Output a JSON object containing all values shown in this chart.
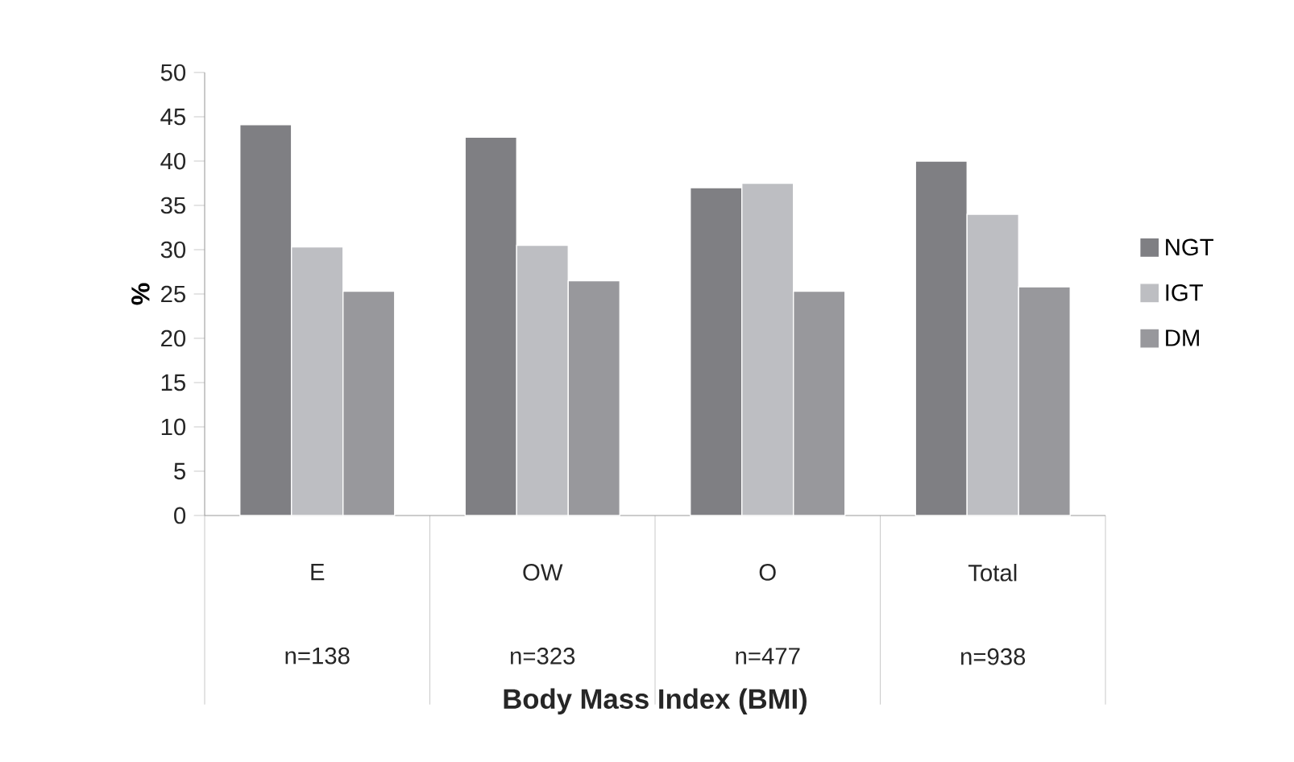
{
  "chart_data": {
    "type": "bar",
    "xlabel": "Body Mass Index (BMI)",
    "ylabel": "%",
    "categories": [
      "E",
      "OW",
      "O",
      "Total"
    ],
    "series": [
      {
        "name": "NGT",
        "color": "#7f7f83",
        "values": [
          44.1,
          42.7,
          37.0,
          40.0
        ]
      },
      {
        "name": "IGT",
        "color": "#bdbec2",
        "values": [
          30.3,
          30.5,
          37.5,
          34.0
        ]
      },
      {
        "name": "DM",
        "color": "#98989c",
        "values": [
          25.3,
          26.5,
          25.3,
          25.8
        ]
      }
    ],
    "ylim": [
      0,
      50
    ],
    "yticks": [
      0,
      5,
      10,
      15,
      20,
      25,
      30,
      35,
      40,
      45,
      50
    ],
    "legend": "right",
    "grid": false,
    "annotations": [
      "n=138",
      "n=323",
      "n=477",
      "n=938"
    ]
  }
}
